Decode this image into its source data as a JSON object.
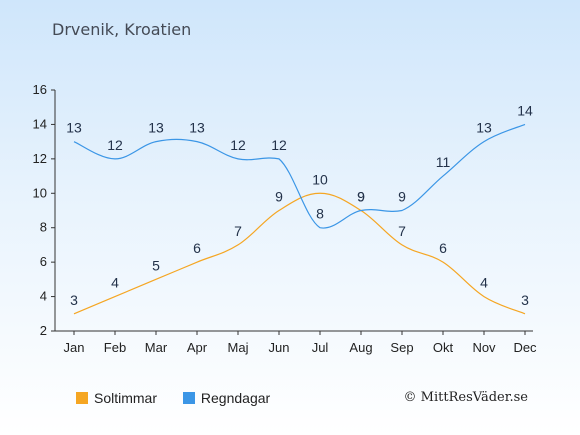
{
  "title": "Drvenik, Kroatien",
  "credit": "© MittResVäder.se",
  "chart_data": {
    "type": "line",
    "categories": [
      "Jan",
      "Feb",
      "Mar",
      "Apr",
      "Maj",
      "Jun",
      "Jul",
      "Aug",
      "Sep",
      "Okt",
      "Nov",
      "Dec"
    ],
    "ylim": [
      2,
      16
    ],
    "yticks": [
      2,
      4,
      6,
      8,
      10,
      12,
      14,
      16
    ],
    "series": [
      {
        "name": "Soltimmar",
        "color": "#f5a623",
        "values": [
          3,
          4,
          5,
          6,
          7,
          9,
          10,
          9,
          7,
          6,
          4,
          3
        ]
      },
      {
        "name": "Regndagar",
        "color": "#3b96e6",
        "values": [
          13,
          12,
          13,
          13,
          12,
          12,
          8,
          9,
          9,
          11,
          13,
          14
        ]
      }
    ],
    "legend": "bottom"
  }
}
